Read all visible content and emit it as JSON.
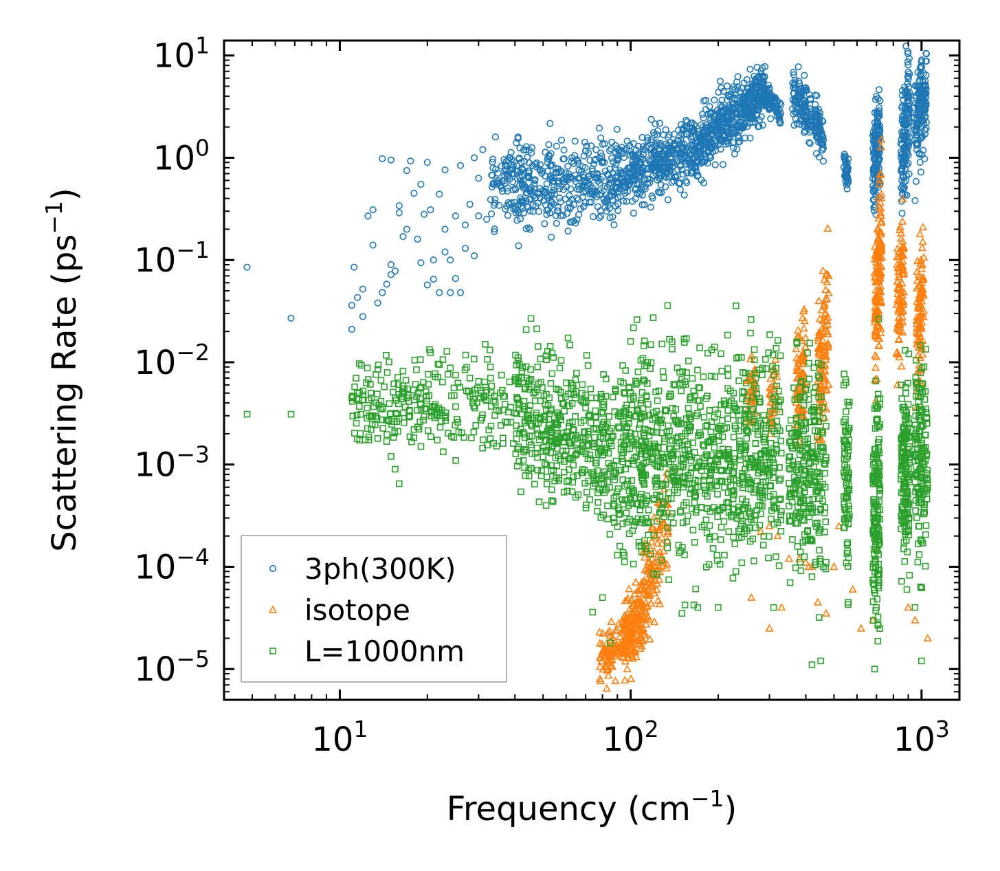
{
  "chart_data": {
    "type": "scatter",
    "xscale": "log",
    "yscale": "log",
    "xlim": [
      4,
      1350
    ],
    "ylim": [
      5e-06,
      14
    ],
    "xlabel": {
      "main": "Frequency (cm",
      "sup": "−1",
      "end": ")"
    },
    "ylabel": {
      "main": "Scattering Rate (ps",
      "sup": "−1",
      "end": ")"
    },
    "xticks": [
      {
        "value": 10,
        "base": "10",
        "exp": "1"
      },
      {
        "value": 100,
        "base": "10",
        "exp": "2"
      },
      {
        "value": 1000,
        "base": "10",
        "exp": "3"
      }
    ],
    "yticks": [
      {
        "value": 10,
        "base": "10",
        "exp": "1"
      },
      {
        "value": 1,
        "base": "10",
        "exp": "0"
      },
      {
        "value": 0.1,
        "base": "10",
        "exp": "−1"
      },
      {
        "value": 0.01,
        "base": "10",
        "exp": "−2"
      },
      {
        "value": 0.001,
        "base": "10",
        "exp": "−3"
      },
      {
        "value": 0.0001,
        "base": "10",
        "exp": "−4"
      },
      {
        "value": 1e-05,
        "base": "10",
        "exp": "−5"
      }
    ],
    "legend_position": "lower-left",
    "series": [
      {
        "name": "3ph(300K)",
        "marker": "circle",
        "color": "#1f77b4",
        "points": [
          [
            4.8,
            0.085
          ],
          [
            6.8,
            0.027
          ],
          [
            11,
            0.021
          ],
          [
            11,
            0.036
          ],
          [
            11.2,
            0.085
          ],
          [
            11.5,
            0.043
          ],
          [
            12,
            0.028
          ],
          [
            12,
            0.052
          ],
          [
            12.5,
            0.27
          ],
          [
            13,
            0.14
          ],
          [
            13,
            0.31
          ],
          [
            13.5,
            0.038
          ],
          [
            14,
            0.98
          ],
          [
            14,
            0.048
          ],
          [
            14.5,
            0.058
          ],
          [
            15,
            0.09
          ],
          [
            15,
            0.95
          ],
          [
            15,
            0.072
          ],
          [
            15.5,
            0.078
          ],
          [
            16,
            0.34
          ],
          [
            16,
            0.29
          ],
          [
            16.5,
            0.17
          ],
          [
            17,
            0.2
          ],
          [
            17,
            0.75
          ],
          [
            17.5,
            0.93
          ],
          [
            18,
            0.45
          ],
          [
            18.5,
            0.16
          ],
          [
            19,
            0.094
          ],
          [
            19,
            0.55
          ],
          [
            19.5,
            0.28
          ],
          [
            20,
            0.9
          ],
          [
            20,
            0.057
          ],
          [
            20.5,
            0.31
          ],
          [
            21,
            0.1
          ],
          [
            21,
            0.065
          ],
          [
            22,
            0.44
          ],
          [
            22,
            0.048
          ],
          [
            23,
            0.12
          ],
          [
            23,
            0.2
          ],
          [
            23,
            0.76
          ],
          [
            24,
            0.048
          ],
          [
            24,
            0.1
          ],
          [
            25,
            0.27
          ],
          [
            25,
            0.066
          ],
          [
            26,
            0.048
          ],
          [
            26,
            0.84
          ],
          [
            27,
            0.22
          ],
          [
            27,
            0.13
          ],
          [
            28,
            0.35
          ],
          [
            29,
            0.11
          ],
          [
            29,
            1.0
          ],
          [
            30,
            0.27
          ],
          [
            30,
            0.63
          ],
          [
            31,
            1.2
          ],
          [
            32,
            0.25
          ],
          [
            33,
            0.39
          ],
          [
            34,
            0.19
          ],
          [
            35,
            0.6
          ],
          [
            36,
            0.83
          ]
        ],
        "bands": [
          {
            "x": [
              33,
              90
            ],
            "yc_start": 0.5,
            "yc_end": 0.65,
            "spread": 0.22,
            "n": 420
          },
          {
            "x": [
              90,
              160
            ],
            "yc_start": 0.65,
            "yc_end": 1.2,
            "spread": 0.16,
            "n": 360
          },
          {
            "x": [
              160,
              240
            ],
            "yc_start": 1.2,
            "yc_end": 2.8,
            "spread": 0.16,
            "n": 330
          },
          {
            "x": [
              240,
              290
            ],
            "yc_start": 2.8,
            "yc_end": 4.8,
            "spread": 0.12,
            "n": 200
          },
          {
            "x": [
              290,
              330
            ],
            "yc_start": 4.0,
            "yc_end": 2.8,
            "spread": 0.06,
            "n": 80
          },
          {
            "x": [
              360,
              420
            ],
            "yc_start": 4.2,
            "yc_end": 2.4,
            "spread": 0.12,
            "n": 120
          },
          {
            "x": [
              430,
              460
            ],
            "yc_start": 2.4,
            "yc_end": 1.4,
            "spread": 0.1,
            "n": 70
          },
          {
            "x": [
              540,
              560
            ],
            "yc_start": 0.85,
            "yc_end": 0.7,
            "spread": 0.08,
            "n": 40
          },
          {
            "x": [
              680,
              720
            ],
            "yc_start": 0.75,
            "yc_end": 1.5,
            "spread": 0.25,
            "n": 140
          },
          {
            "x": [
              850,
              910
            ],
            "yc_start": 1.0,
            "yc_end": 3.0,
            "spread": 0.3,
            "n": 150
          },
          {
            "x": [
              940,
              1040
            ],
            "yc_start": 1.8,
            "yc_end": 5.0,
            "spread": 0.25,
            "n": 150
          }
        ]
      },
      {
        "name": "isotope",
        "marker": "triangle",
        "color": "#ff7f0e",
        "points": [
          [
            280,
            0.00022
          ],
          [
            300,
            0.00025
          ],
          [
            320,
            0.0002
          ],
          [
            350,
            0.00012
          ],
          [
            380,
            0.00012
          ],
          [
            400,
            0.00011
          ],
          [
            410,
            0.0001
          ],
          [
            420,
            0.0001
          ],
          [
            500,
            0.0001
          ],
          [
            520,
            0.00025
          ],
          [
            580,
            6e-05
          ],
          [
            620,
            2.5e-05
          ],
          [
            680,
            3e-05
          ],
          [
            700,
            0.00015
          ],
          [
            1050,
            2e-05
          ],
          [
            900,
            4e-05
          ],
          [
            950,
            3e-05
          ],
          [
            440,
            4.5e-05
          ],
          [
            470,
            3.5e-05
          ],
          [
            300,
            2.5e-05
          ],
          [
            260,
            5e-05
          ],
          [
            330,
            4e-05
          ]
        ],
        "bands": [
          {
            "x": [
              78,
              110
            ],
            "yc_start": 1.2e-05,
            "yc_end": 2.5e-05,
            "spread": 0.12,
            "n": 150
          },
          {
            "x": [
              95,
              118
            ],
            "yc_start": 2e-05,
            "yc_end": 6.5e-05,
            "spread": 0.18,
            "n": 120
          },
          {
            "x": [
              110,
              135
            ],
            "yc_start": 6e-05,
            "yc_end": 0.0003,
            "spread": 0.25,
            "n": 90
          },
          {
            "x": [
              250,
              270
            ],
            "yc_start": 0.004,
            "yc_end": 0.006,
            "spread": 0.15,
            "n": 40
          },
          {
            "x": [
              300,
              320
            ],
            "yc_start": 0.004,
            "yc_end": 0.006,
            "spread": 0.15,
            "n": 30
          },
          {
            "x": [
              370,
              400
            ],
            "yc_start": 0.005,
            "yc_end": 0.012,
            "spread": 0.25,
            "n": 80
          },
          {
            "x": [
              440,
              480
            ],
            "yc_start": 0.006,
            "yc_end": 0.03,
            "spread": 0.35,
            "n": 110
          },
          {
            "x": [
              690,
              730
            ],
            "yc_start": 0.02,
            "yc_end": 0.15,
            "spread": 0.4,
            "n": 140
          },
          {
            "x": [
              820,
              870
            ],
            "yc_start": 0.03,
            "yc_end": 0.08,
            "spread": 0.35,
            "n": 90
          },
          {
            "x": [
              960,
              1020
            ],
            "yc_start": 0.02,
            "yc_end": 0.06,
            "spread": 0.35,
            "n": 90
          }
        ]
      },
      {
        "name": "L=1000nm",
        "marker": "square",
        "color": "#2ca02c",
        "points": [
          [
            4.8,
            0.0031
          ],
          [
            6.8,
            0.0031
          ],
          [
            11,
            0.0045
          ],
          [
            12,
            0.0048
          ],
          [
            13,
            0.003
          ],
          [
            13.5,
            0.0018
          ],
          [
            14,
            0.0035
          ],
          [
            15,
            0.0012
          ],
          [
            15.5,
            0.0009
          ],
          [
            16,
            0.00065
          ],
          [
            17,
            0.0045
          ],
          [
            18,
            0.0022
          ],
          [
            19,
            0.0015
          ],
          [
            22,
            0.0095
          ],
          [
            24,
            0.0088
          ],
          [
            25,
            0.0075
          ],
          [
            28,
            0.007
          ],
          [
            30,
            0.0065
          ],
          [
            36,
            0.0075
          ],
          [
            40,
            0.0068
          ],
          [
            70,
            0.0048
          ],
          [
            80,
            5e-05
          ],
          [
            90,
            0.00013
          ],
          [
            74,
            3.6e-05
          ],
          [
            85,
            1.8e-05
          ],
          [
            95,
            0.00013
          ],
          [
            150,
            3.5e-05
          ],
          [
            170,
            4e-05
          ],
          [
            200,
            4e-05
          ],
          [
            210,
            0.00013
          ],
          [
            230,
            9e-05
          ],
          [
            310,
            4e-05
          ],
          [
            420,
            1.1e-05
          ],
          [
            450,
            1.2e-05
          ],
          [
            560,
            4.5e-05
          ],
          [
            690,
            1e-05
          ],
          [
            1000,
            1.2e-05
          ],
          [
            950,
            4e-05
          ],
          [
            460,
            0.0001
          ],
          [
            420,
            8e-05
          ]
        ],
        "bands": [
          {
            "x": [
              11,
              40
            ],
            "yc_start": 0.0036,
            "yc_end": 0.0045,
            "spread": 0.22,
            "n": 260
          },
          {
            "x": [
              40,
              90
            ],
            "yc_start": 0.0035,
            "yc_end": 0.0012,
            "spread": 0.35,
            "n": 420
          },
          {
            "x": [
              90,
              330
            ],
            "yc_start": 0.0012,
            "yc_end": 0.0012,
            "spread": 0.5,
            "n": 900
          },
          {
            "x": [
              350,
              470
            ],
            "yc_start": 0.001,
            "yc_end": 0.0008,
            "spread": 0.5,
            "n": 260
          },
          {
            "x": [
              540,
              565
            ],
            "yc_start": 0.0008,
            "yc_end": 0.0008,
            "spread": 0.45,
            "n": 80
          },
          {
            "x": [
              680,
              720
            ],
            "yc_start": 0.0003,
            "yc_end": 0.0005,
            "spread": 0.6,
            "n": 160
          },
          {
            "x": [
              850,
              910
            ],
            "yc_start": 0.0008,
            "yc_end": 0.001,
            "spread": 0.5,
            "n": 150
          },
          {
            "x": [
              950,
              1050
            ],
            "yc_start": 0.001,
            "yc_end": 0.0015,
            "spread": 0.5,
            "n": 150
          }
        ]
      }
    ]
  }
}
